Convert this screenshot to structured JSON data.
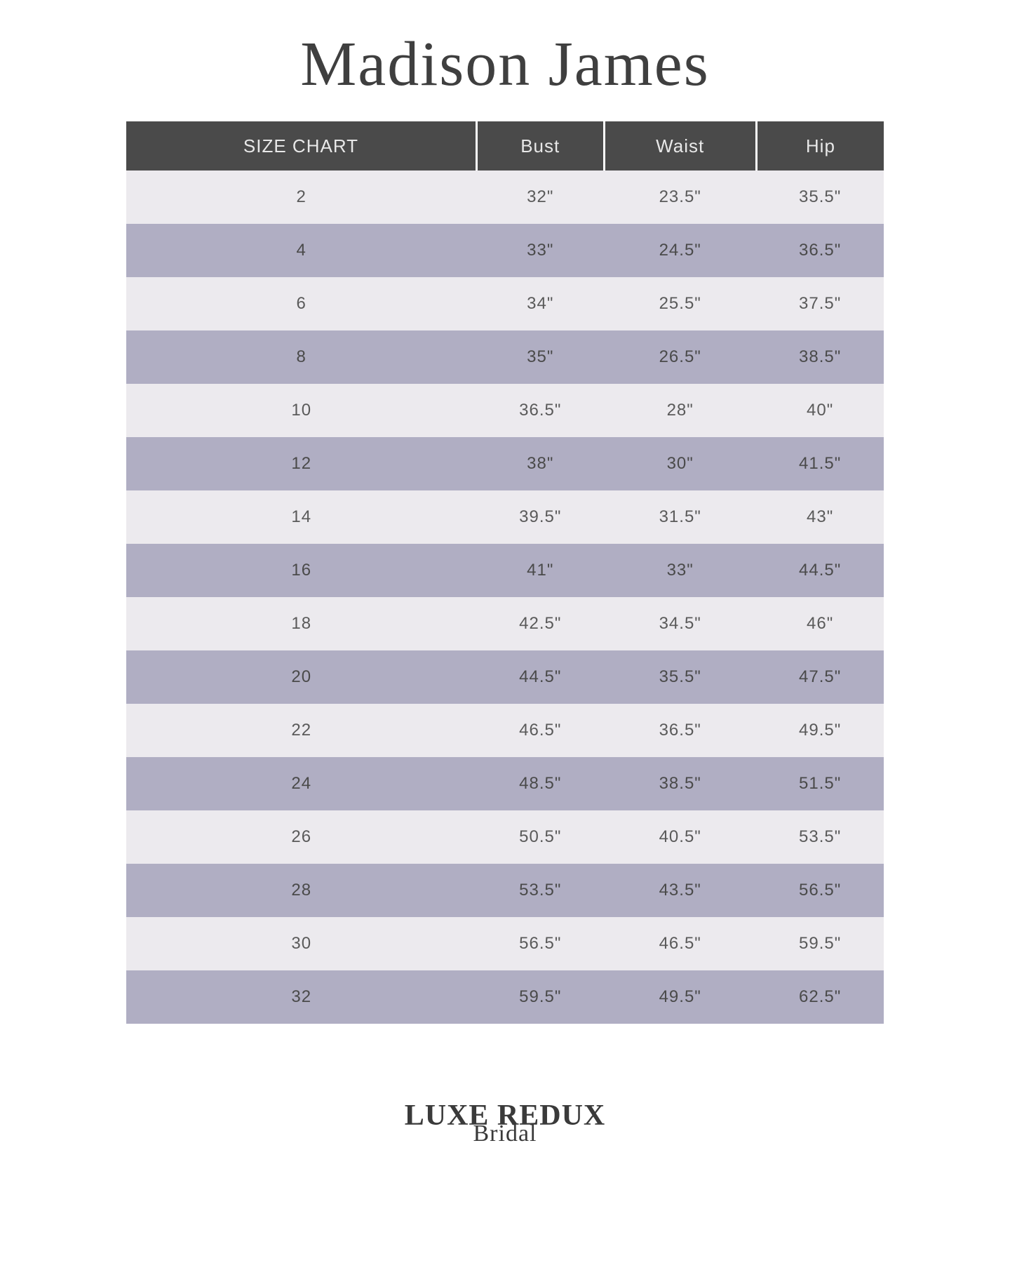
{
  "title": "Madison James",
  "footer": {
    "main": "LUXE REDUX",
    "sub": "Bridal"
  },
  "table": {
    "type": "table",
    "header_bg": "#4a4a4a",
    "header_text_color": "#e8e8e8",
    "row_odd_bg": "#eceaee",
    "row_even_bg": "#b0aec3",
    "cell_text_color": "#5a5a5a",
    "header_fontsize": 26,
    "cell_fontsize": 24,
    "columns": [
      "SIZE CHART",
      "Bust",
      "Waist",
      "Hip"
    ],
    "rows": [
      [
        "2",
        "32\"",
        "23.5\"",
        "35.5\""
      ],
      [
        "4",
        "33\"",
        "24.5\"",
        "36.5\""
      ],
      [
        "6",
        "34\"",
        "25.5\"",
        "37.5\""
      ],
      [
        "8",
        "35\"",
        "26.5\"",
        "38.5\""
      ],
      [
        "10",
        "36.5\"",
        "28\"",
        "40\""
      ],
      [
        "12",
        "38\"",
        "30\"",
        "41.5\""
      ],
      [
        "14",
        "39.5\"",
        "31.5\"",
        "43\""
      ],
      [
        "16",
        "41\"",
        "33\"",
        "44.5\""
      ],
      [
        "18",
        "42.5\"",
        "34.5\"",
        "46\""
      ],
      [
        "20",
        "44.5\"",
        "35.5\"",
        "47.5\""
      ],
      [
        "22",
        "46.5\"",
        "36.5\"",
        "49.5\""
      ],
      [
        "24",
        "48.5\"",
        "38.5\"",
        "51.5\""
      ],
      [
        "26",
        "50.5\"",
        "40.5\"",
        "53.5\""
      ],
      [
        "28",
        "53.5\"",
        "43.5\"",
        "56.5\""
      ],
      [
        "30",
        "56.5\"",
        "46.5\"",
        "59.5\""
      ],
      [
        "32",
        "59.5\"",
        "49.5\"",
        "62.5\""
      ]
    ]
  }
}
